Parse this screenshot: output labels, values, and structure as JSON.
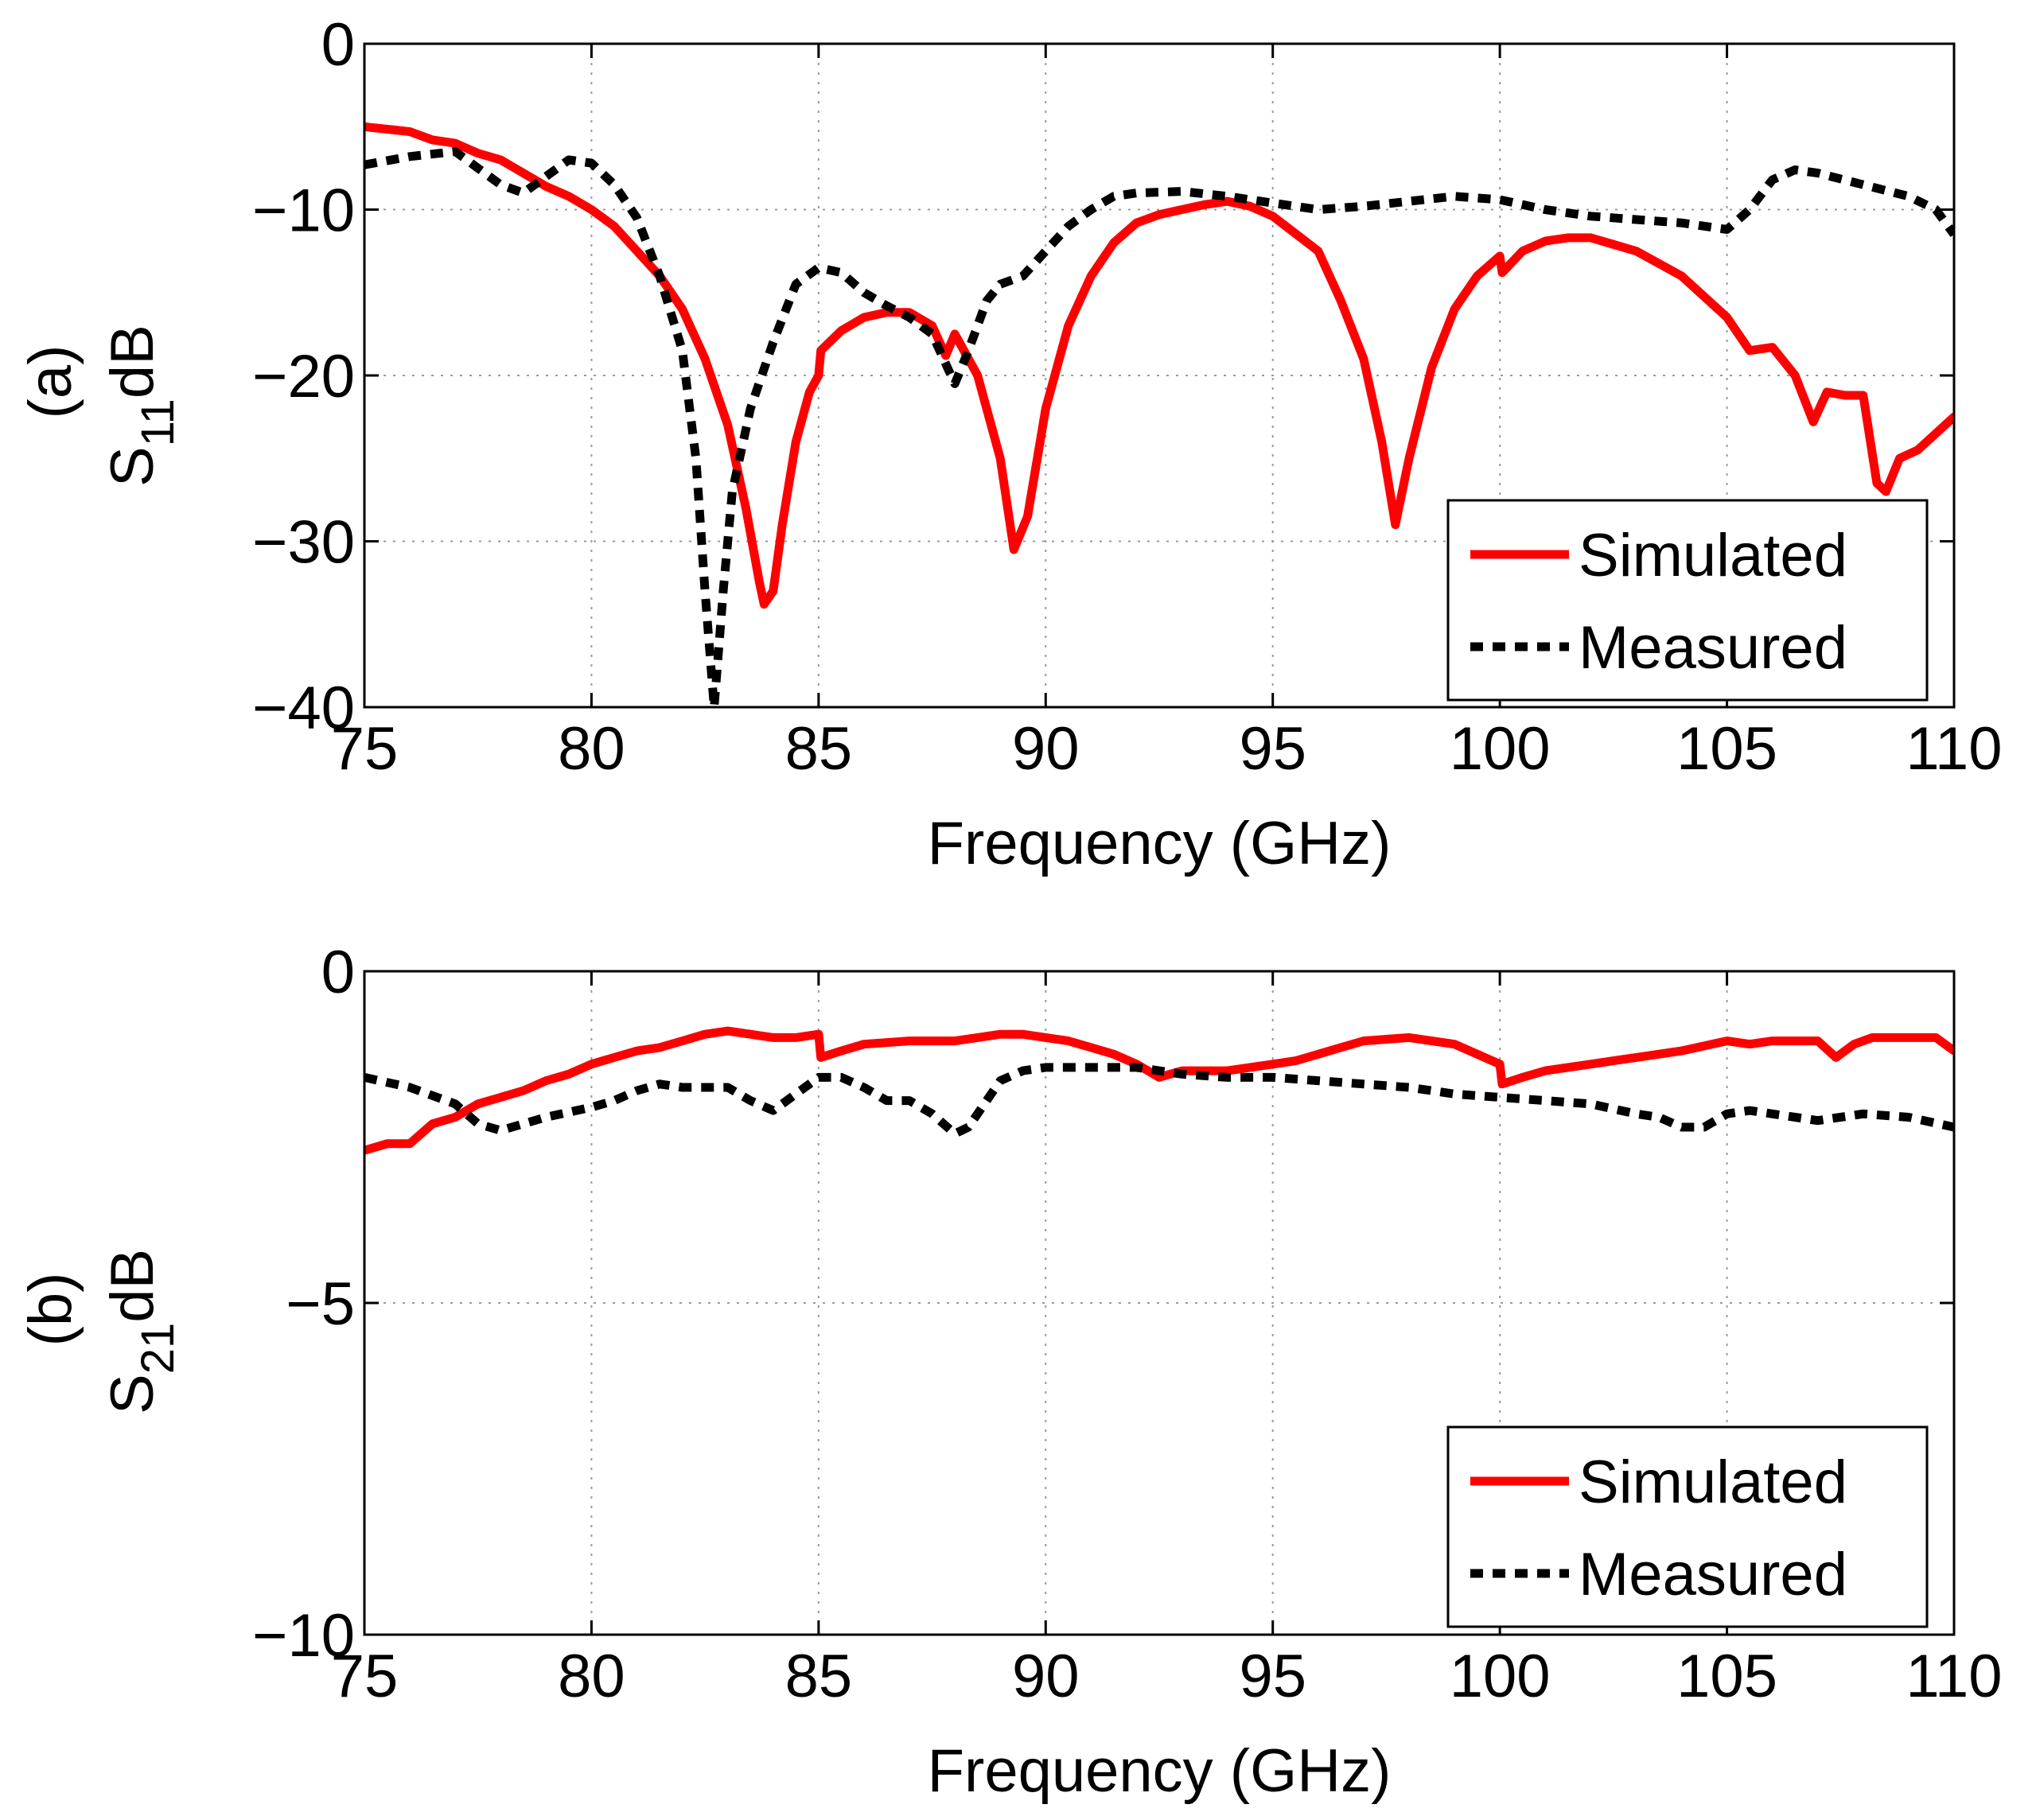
{
  "chart_data": [
    {
      "type": "line",
      "panel_label": "(a)",
      "ylabel": "S",
      "ylabel_subscript": "11",
      "ylabel_suffix": "dB",
      "xlabel": "Frequency (GHz)",
      "xlim": [
        75,
        110
      ],
      "ylim": [
        -40,
        0
      ],
      "xticks": [
        75,
        80,
        85,
        90,
        95,
        100,
        105,
        110
      ],
      "xtick_labels": [
        "75",
        "80",
        "85",
        "90",
        "95",
        "100",
        "105",
        "110"
      ],
      "yticks": [
        0,
        -10,
        -20,
        -30,
        -40
      ],
      "ytick_labels": [
        "0",
        "−10",
        "−20",
        "−30",
        "−40"
      ],
      "grid": true,
      "legend_position": "bottom-right",
      "series": [
        {
          "name": "Simulated",
          "color": "#ff0000",
          "style": "solid",
          "points": [
            [
              75,
              -5
            ],
            [
              76,
              -5.3
            ],
            [
              76.5,
              -5.8
            ],
            [
              77,
              -6
            ],
            [
              77.5,
              -6.6
            ],
            [
              78,
              -7
            ],
            [
              78.5,
              -7.8
            ],
            [
              79,
              -8.6
            ],
            [
              79.5,
              -9.2
            ],
            [
              80,
              -10
            ],
            [
              80.5,
              -11
            ],
            [
              81,
              -12.5
            ],
            [
              81.5,
              -14
            ],
            [
              82,
              -16
            ],
            [
              82.5,
              -19
            ],
            [
              83,
              -23
            ],
            [
              83.4,
              -28
            ],
            [
              83.7,
              -32.5
            ],
            [
              83.8,
              -33.8
            ],
            [
              84,
              -33
            ],
            [
              84.2,
              -29
            ],
            [
              84.5,
              -24
            ],
            [
              84.8,
              -21
            ],
            [
              85,
              -20
            ],
            [
              85.05,
              -18.5
            ],
            [
              85.5,
              -17.3
            ],
            [
              86,
              -16.5
            ],
            [
              86.5,
              -16.2
            ],
            [
              87,
              -16.2
            ],
            [
              87.5,
              -17
            ],
            [
              87.8,
              -18.8
            ],
            [
              88,
              -17.5
            ],
            [
              88.2,
              -18.5
            ],
            [
              88.5,
              -20
            ],
            [
              89,
              -25
            ],
            [
              89.3,
              -30.5
            ],
            [
              89.6,
              -28.5
            ],
            [
              90,
              -22
            ],
            [
              90.5,
              -17
            ],
            [
              91,
              -14
            ],
            [
              91.5,
              -12
            ],
            [
              92,
              -10.8
            ],
            [
              92.5,
              -10.3
            ],
            [
              93,
              -10
            ],
            [
              93.5,
              -9.7
            ],
            [
              94,
              -9.5
            ],
            [
              94.5,
              -9.8
            ],
            [
              95,
              -10.4
            ],
            [
              96,
              -12.5
            ],
            [
              96.5,
              -15.5
            ],
            [
              97,
              -19
            ],
            [
              97.4,
              -24
            ],
            [
              97.7,
              -29
            ],
            [
              98,
              -25
            ],
            [
              98.5,
              -19.5
            ],
            [
              99,
              -16
            ],
            [
              99.5,
              -14
            ],
            [
              100,
              -12.8
            ],
            [
              100.05,
              -13.8
            ],
            [
              100.5,
              -12.5
            ],
            [
              101,
              -11.9
            ],
            [
              101.5,
              -11.7
            ],
            [
              102,
              -11.7
            ],
            [
              103,
              -12.5
            ],
            [
              104,
              -14
            ],
            [
              105,
              -16.5
            ],
            [
              105.5,
              -18.5
            ],
            [
              106,
              -18.3
            ],
            [
              106.5,
              -20
            ],
            [
              106.9,
              -22.8
            ],
            [
              107.2,
              -21
            ],
            [
              107.6,
              -21.2
            ],
            [
              108,
              -21.2
            ],
            [
              108.3,
              -26.5
            ],
            [
              108.5,
              -27
            ],
            [
              108.8,
              -25
            ],
            [
              109.2,
              -24.5
            ],
            [
              110,
              -22.5
            ]
          ]
        },
        {
          "name": "Measured",
          "color": "#000000",
          "style": "dashed",
          "points": [
            [
              75,
              -7.3
            ],
            [
              76,
              -6.8
            ],
            [
              77,
              -6.5
            ],
            [
              77.5,
              -7.5
            ],
            [
              78,
              -8.5
            ],
            [
              78.5,
              -9
            ],
            [
              79,
              -8
            ],
            [
              79.5,
              -7
            ],
            [
              80,
              -7.2
            ],
            [
              80.5,
              -8.5
            ],
            [
              81,
              -10.5
            ],
            [
              81.5,
              -14
            ],
            [
              82,
              -18.5
            ],
            [
              82.3,
              -25
            ],
            [
              82.5,
              -33
            ],
            [
              82.7,
              -40
            ],
            [
              82.9,
              -33
            ],
            [
              83.1,
              -27
            ],
            [
              83.5,
              -22
            ],
            [
              84,
              -18
            ],
            [
              84.5,
              -14.5
            ],
            [
              85,
              -13.5
            ],
            [
              85.5,
              -13.8
            ],
            [
              86,
              -15
            ],
            [
              86.5,
              -15.8
            ],
            [
              87,
              -16.5
            ],
            [
              87.5,
              -17.5
            ],
            [
              88,
              -20.5
            ],
            [
              88.3,
              -18.5
            ],
            [
              88.7,
              -15.5
            ],
            [
              89,
              -14.5
            ],
            [
              89.5,
              -14
            ],
            [
              90,
              -12.5
            ],
            [
              90.5,
              -11
            ],
            [
              91,
              -10
            ],
            [
              91.5,
              -9.2
            ],
            [
              92,
              -9
            ],
            [
              93,
              -8.9
            ],
            [
              94,
              -9.2
            ],
            [
              95,
              -9.6
            ],
            [
              96,
              -10
            ],
            [
              97,
              -9.8
            ],
            [
              98,
              -9.5
            ],
            [
              99,
              -9.2
            ],
            [
              100,
              -9.4
            ],
            [
              101,
              -10
            ],
            [
              102,
              -10.4
            ],
            [
              103,
              -10.6
            ],
            [
              104,
              -10.8
            ],
            [
              105,
              -11.2
            ],
            [
              105.5,
              -10
            ],
            [
              106,
              -8.2
            ],
            [
              106.5,
              -7.6
            ],
            [
              107,
              -7.8
            ],
            [
              108,
              -8.5
            ],
            [
              109,
              -9.2
            ],
            [
              109.6,
              -10
            ],
            [
              110,
              -11.5
            ]
          ]
        }
      ]
    },
    {
      "type": "line",
      "panel_label": "(b)",
      "ylabel": "S",
      "ylabel_subscript": "21",
      "ylabel_suffix": "dB",
      "xlabel": "Frequency (GHz)",
      "xlim": [
        75,
        110
      ],
      "ylim": [
        -10,
        0
      ],
      "xticks": [
        75,
        80,
        85,
        90,
        95,
        100,
        105,
        110
      ],
      "xtick_labels": [
        "75",
        "80",
        "85",
        "90",
        "95",
        "100",
        "105",
        "110"
      ],
      "yticks": [
        0,
        -5,
        -10
      ],
      "ytick_labels": [
        "0",
        "−5",
        "−10"
      ],
      "grid": true,
      "legend_position": "bottom-right",
      "series": [
        {
          "name": "Simulated",
          "color": "#ff0000",
          "style": "solid",
          "points": [
            [
              75,
              -2.7
            ],
            [
              75.5,
              -2.6
            ],
            [
              76,
              -2.6
            ],
            [
              76.5,
              -2.3
            ],
            [
              77,
              -2.2
            ],
            [
              77.5,
              -2
            ],
            [
              78,
              -1.9
            ],
            [
              78.5,
              -1.8
            ],
            [
              79,
              -1.65
            ],
            [
              79.5,
              -1.55
            ],
            [
              80,
              -1.4
            ],
            [
              80.5,
              -1.3
            ],
            [
              81,
              -1.2
            ],
            [
              81.5,
              -1.15
            ],
            [
              82,
              -1.05
            ],
            [
              82.5,
              -0.95
            ],
            [
              83,
              -0.9
            ],
            [
              83.5,
              -0.95
            ],
            [
              84,
              -1
            ],
            [
              84.5,
              -1
            ],
            [
              85,
              -0.95
            ],
            [
              85.05,
              -1.3
            ],
            [
              85.5,
              -1.2
            ],
            [
              86,
              -1.1
            ],
            [
              87,
              -1.05
            ],
            [
              88,
              -1.05
            ],
            [
              88.5,
              -1
            ],
            [
              89,
              -0.95
            ],
            [
              89.5,
              -0.95
            ],
            [
              90,
              -1
            ],
            [
              90.5,
              -1.05
            ],
            [
              91,
              -1.15
            ],
            [
              91.5,
              -1.25
            ],
            [
              92,
              -1.4
            ],
            [
              92.5,
              -1.6
            ],
            [
              93,
              -1.5
            ],
            [
              93.5,
              -1.5
            ],
            [
              94,
              -1.5
            ],
            [
              95,
              -1.4
            ],
            [
              95.5,
              -1.35
            ],
            [
              96,
              -1.25
            ],
            [
              96.5,
              -1.15
            ],
            [
              97,
              -1.05
            ],
            [
              98,
              -1
            ],
            [
              99,
              -1.1
            ],
            [
              100,
              -1.4
            ],
            [
              100.05,
              -1.7
            ],
            [
              100.5,
              -1.6
            ],
            [
              101,
              -1.5
            ],
            [
              102,
              -1.4
            ],
            [
              103,
              -1.3
            ],
            [
              104,
              -1.2
            ],
            [
              105,
              -1.05
            ],
            [
              105.5,
              -1.1
            ],
            [
              106,
              -1.05
            ],
            [
              107,
              -1.05
            ],
            [
              107.4,
              -1.3
            ],
            [
              107.8,
              -1.1
            ],
            [
              108.2,
              -1
            ],
            [
              109,
              -1
            ],
            [
              109.6,
              -1
            ],
            [
              110,
              -1.2
            ]
          ]
        },
        {
          "name": "Measured",
          "color": "#000000",
          "style": "dashed",
          "points": [
            [
              75,
              -1.6
            ],
            [
              76,
              -1.75
            ],
            [
              77,
              -2
            ],
            [
              77.5,
              -2.3
            ],
            [
              78,
              -2.4
            ],
            [
              78.5,
              -2.3
            ],
            [
              79,
              -2.2
            ],
            [
              80,
              -2.05
            ],
            [
              80.5,
              -1.95
            ],
            [
              81,
              -1.8
            ],
            [
              81.5,
              -1.7
            ],
            [
              82,
              -1.75
            ],
            [
              83,
              -1.75
            ],
            [
              83.5,
              -1.95
            ],
            [
              84,
              -2.1
            ],
            [
              84.5,
              -1.85
            ],
            [
              85,
              -1.6
            ],
            [
              85.5,
              -1.6
            ],
            [
              86,
              -1.75
            ],
            [
              86.5,
              -1.95
            ],
            [
              87,
              -1.95
            ],
            [
              87.5,
              -2.15
            ],
            [
              88,
              -2.45
            ],
            [
              88.3,
              -2.35
            ],
            [
              88.7,
              -1.95
            ],
            [
              89,
              -1.65
            ],
            [
              89.5,
              -1.5
            ],
            [
              90,
              -1.45
            ],
            [
              91,
              -1.45
            ],
            [
              92,
              -1.45
            ],
            [
              93,
              -1.55
            ],
            [
              94,
              -1.6
            ],
            [
              95,
              -1.6
            ],
            [
              96,
              -1.65
            ],
            [
              97,
              -1.7
            ],
            [
              98,
              -1.75
            ],
            [
              99,
              -1.85
            ],
            [
              100,
              -1.9
            ],
            [
              101,
              -1.95
            ],
            [
              102,
              -2
            ],
            [
              103,
              -2.15
            ],
            [
              103.5,
              -2.2
            ],
            [
              104,
              -2.35
            ],
            [
              104.5,
              -2.35
            ],
            [
              105,
              -2.15
            ],
            [
              105.5,
              -2.1
            ],
            [
              106,
              -2.15
            ],
            [
              106.5,
              -2.2
            ],
            [
              107,
              -2.25
            ],
            [
              108,
              -2.15
            ],
            [
              109,
              -2.2
            ],
            [
              110,
              -2.35
            ]
          ]
        }
      ]
    }
  ]
}
